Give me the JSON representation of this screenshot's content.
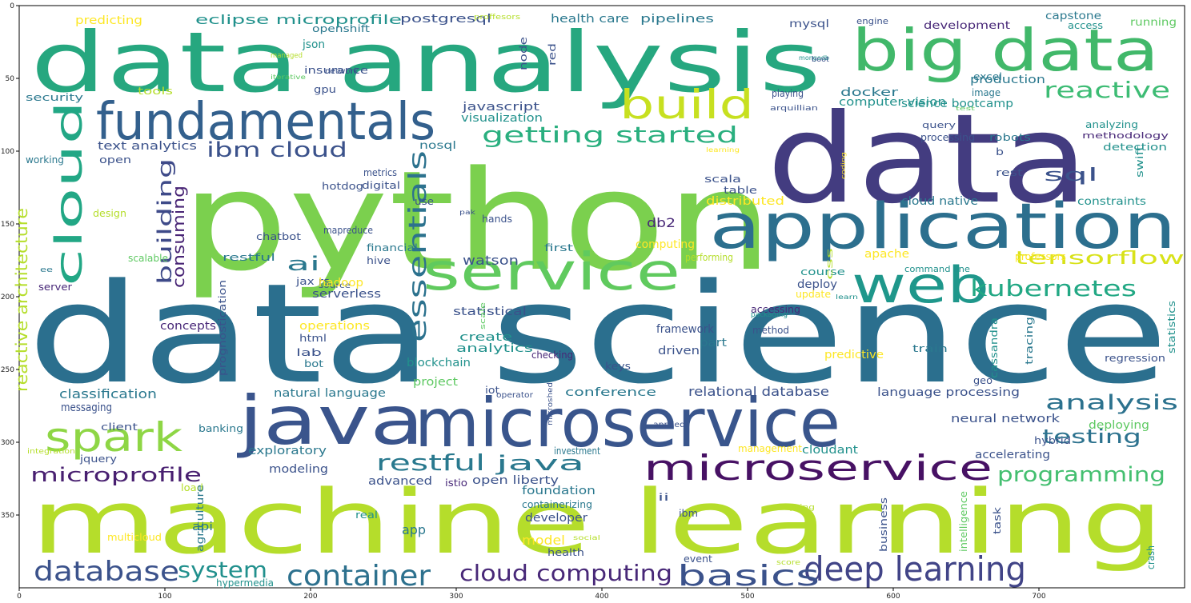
{
  "axes": {
    "xticks": [
      "0",
      "100",
      "200",
      "300",
      "400",
      "500",
      "600",
      "700"
    ],
    "yticks": [
      "0",
      "50",
      "100",
      "150",
      "200",
      "250",
      "300",
      "350"
    ]
  },
  "words": [
    {
      "text": "data science",
      "color": "#2b6f8e"
    },
    {
      "text": "python",
      "color": "#7bd04e"
    },
    {
      "text": "data",
      "color": "#433c80"
    },
    {
      "text": "data analysis",
      "color": "#26a77f"
    },
    {
      "text": "machine learning",
      "color": "#b5dd2b"
    },
    {
      "text": "big data",
      "color": "#41b86a"
    },
    {
      "text": "fundamentals",
      "color": "#33608d"
    },
    {
      "text": "application",
      "color": "#2c6f8e"
    },
    {
      "text": "java",
      "color": "#3a548c"
    },
    {
      "text": "microservice",
      "color": "#39558c"
    },
    {
      "text": "service",
      "color": "#60ca5e"
    },
    {
      "text": "web",
      "color": "#1f978b"
    },
    {
      "text": "build",
      "color": "#c7e020"
    },
    {
      "text": "cloud",
      "color": "#22a785"
    },
    {
      "text": "spark",
      "color": "#8ed645"
    },
    {
      "text": "microservice",
      "color": "#471164"
    },
    {
      "text": "deep learning",
      "color": "#414487"
    },
    {
      "text": "container",
      "color": "#2d718e"
    },
    {
      "text": "basics",
      "color": "#3b528b"
    },
    {
      "text": "database",
      "color": "#3b528b"
    },
    {
      "text": "cloud computing",
      "color": "#482878"
    },
    {
      "text": "system",
      "color": "#21908d"
    },
    {
      "text": "kubernetes",
      "color": "#22a884"
    },
    {
      "text": "getting started",
      "color": "#2aaf7f"
    },
    {
      "text": "reactive",
      "color": "#3dbc74"
    },
    {
      "text": "essentials",
      "color": "#2c728e"
    },
    {
      "text": "analysis",
      "color": "#2c728e"
    },
    {
      "text": "testing",
      "color": "#2c728e"
    },
    {
      "text": "programming",
      "color": "#44bf70"
    },
    {
      "text": "restful",
      "color": "#29798e"
    },
    {
      "text": "java",
      "color": "#2a788e"
    },
    {
      "text": "microprofile",
      "color": "#481f70"
    },
    {
      "text": "ibm cloud",
      "color": "#3b528b"
    },
    {
      "text": "ai",
      "color": "#2a788e"
    },
    {
      "text": "building",
      "color": "#3e4a89"
    },
    {
      "text": "consuming",
      "color": "#482475"
    },
    {
      "text": "sql",
      "color": "#3b528b"
    },
    {
      "text": "tensorflow",
      "color": "#d8e219"
    },
    {
      "text": "eclipse microprofile",
      "color": "#21918c"
    },
    {
      "text": "postgresql",
      "color": "#3b528b"
    },
    {
      "text": "health care",
      "color": "#2a788e"
    },
    {
      "text": "pipelines",
      "color": "#2a788e"
    },
    {
      "text": "mysql",
      "color": "#3b528b"
    },
    {
      "text": "development",
      "color": "#482878"
    },
    {
      "text": "capstone",
      "color": "#2a788e"
    },
    {
      "text": "running",
      "color": "#5ec962"
    },
    {
      "text": "engine",
      "color": "#3b528b"
    },
    {
      "text": "predicting",
      "color": "#fde725"
    },
    {
      "text": "proffesors",
      "color": "#b5de2b"
    },
    {
      "text": "openshift",
      "color": "#2a788e"
    },
    {
      "text": "json",
      "color": "#21918c"
    },
    {
      "text": "insurance",
      "color": "#3b528b"
    },
    {
      "text": "gpu",
      "color": "#3b528b"
    },
    {
      "text": "network",
      "color": "#3b528b"
    },
    {
      "text": "security",
      "color": "#2a788e"
    },
    {
      "text": "tools",
      "color": "#b5de2b"
    },
    {
      "text": "javascript",
      "color": "#3b528b"
    },
    {
      "text": "visualization",
      "color": "#21918c"
    },
    {
      "text": "docker",
      "color": "#2a788e"
    },
    {
      "text": "computer vision",
      "color": "#21918c"
    },
    {
      "text": "science bootcamp",
      "color": "#21918c"
    },
    {
      "text": "text analytics",
      "color": "#3b528b"
    },
    {
      "text": "nosql",
      "color": "#2a788e"
    },
    {
      "text": "analyzing",
      "color": "#21918c"
    },
    {
      "text": "methodology",
      "color": "#482878"
    },
    {
      "text": "detection",
      "color": "#21918c"
    },
    {
      "text": "robots",
      "color": "#2a788e"
    },
    {
      "text": "processing",
      "color": "#3b528b"
    },
    {
      "text": "query",
      "color": "#3b528b"
    },
    {
      "text": "swift",
      "color": "#21918c"
    },
    {
      "text": "working",
      "color": "#2a788e"
    },
    {
      "text": "open",
      "color": "#3b528b"
    },
    {
      "text": "metrics",
      "color": "#3b528b"
    },
    {
      "text": "hotdog",
      "color": "#3b528b"
    },
    {
      "text": "digital",
      "color": "#3b528b"
    },
    {
      "text": "table",
      "color": "#3b528b"
    },
    {
      "text": "scala",
      "color": "#3b528b"
    },
    {
      "text": "rest",
      "color": "#3b528b"
    },
    {
      "text": "distributed",
      "color": "#fde725"
    },
    {
      "text": "cloud native",
      "color": "#2a788e"
    },
    {
      "text": "constraints",
      "color": "#21918c"
    },
    {
      "text": "design",
      "color": "#b5de2b"
    },
    {
      "text": "use",
      "color": "#3b528b"
    },
    {
      "text": "hands",
      "color": "#3b528b"
    },
    {
      "text": "db2",
      "color": "#482878"
    },
    {
      "text": "chatbot",
      "color": "#3b528b"
    },
    {
      "text": "mapreduce",
      "color": "#3b528b"
    },
    {
      "text": "financial",
      "color": "#2a788e"
    },
    {
      "text": "first",
      "color": "#2a788e"
    },
    {
      "text": "computing",
      "color": "#fde725"
    },
    {
      "text": "apache",
      "color": "#fde725"
    },
    {
      "text": "watson",
      "color": "#3b528b"
    },
    {
      "text": "restful",
      "color": "#2a788e"
    },
    {
      "text": "hive",
      "color": "#3b528b"
    },
    {
      "text": "performing",
      "color": "#b5de2b"
    },
    {
      "text": "professors",
      "color": "#fde725"
    },
    {
      "text": "course",
      "color": "#21918c"
    },
    {
      "text": "command line",
      "color": "#21918c"
    },
    {
      "text": "deploy",
      "color": "#3b528b"
    },
    {
      "text": "scalable",
      "color": "#5ec962"
    },
    {
      "text": "server",
      "color": "#482878"
    },
    {
      "text": "source",
      "color": "#3b528b"
    },
    {
      "text": "jax rs",
      "color": "#3b528b"
    },
    {
      "text": "serverless",
      "color": "#3b528b"
    },
    {
      "text": "hadoop",
      "color": "#fde725"
    },
    {
      "text": "statistical",
      "color": "#3b528b"
    },
    {
      "text": "operations",
      "color": "#fde725"
    },
    {
      "text": "concepts",
      "color": "#482878"
    },
    {
      "text": "create",
      "color": "#21918c"
    },
    {
      "text": "framework",
      "color": "#3b528b"
    },
    {
      "text": "method",
      "color": "#3b528b"
    },
    {
      "text": "analytics",
      "color": "#21918c"
    },
    {
      "text": "part",
      "color": "#2a788e"
    },
    {
      "text": "lab",
      "color": "#3b528b"
    },
    {
      "text": "driven",
      "color": "#3b528b"
    },
    {
      "text": "predictive",
      "color": "#fde725"
    },
    {
      "text": "train",
      "color": "#2a788e"
    },
    {
      "text": "regression",
      "color": "#3b528b"
    },
    {
      "text": "blockchain",
      "color": "#21918c"
    },
    {
      "text": "checking",
      "color": "#482878"
    },
    {
      "text": "keys",
      "color": "#3b528b"
    },
    {
      "text": "project",
      "color": "#5ec962"
    },
    {
      "text": "classification",
      "color": "#2a788e"
    },
    {
      "text": "natural language",
      "color": "#2a788e"
    },
    {
      "text": "conference",
      "color": "#2a788e"
    },
    {
      "text": "relational database",
      "color": "#3b528b"
    },
    {
      "text": "language processing",
      "color": "#3b528b"
    },
    {
      "text": "messaging",
      "color": "#3b528b"
    },
    {
      "text": "client",
      "color": "#3b528b"
    },
    {
      "text": "neural network",
      "color": "#3b528b"
    },
    {
      "text": "deploying",
      "color": "#5ec962"
    },
    {
      "text": "hybrid",
      "color": "#3b528b"
    },
    {
      "text": "banking",
      "color": "#2a788e"
    },
    {
      "text": "exploratory",
      "color": "#2a788e"
    },
    {
      "text": "investment",
      "color": "#2a788e"
    },
    {
      "text": "management",
      "color": "#fde725"
    },
    {
      "text": "cloudant",
      "color": "#21918c"
    },
    {
      "text": "accelerating",
      "color": "#3b528b"
    },
    {
      "text": "jquery",
      "color": "#3b528b"
    },
    {
      "text": "modeling",
      "color": "#3b528b"
    },
    {
      "text": "advanced",
      "color": "#3b528b"
    },
    {
      "text": "open liberty",
      "color": "#3b528b"
    },
    {
      "text": "foundation",
      "color": "#2a788e"
    },
    {
      "text": "containerizing",
      "color": "#2a788e"
    },
    {
      "text": "developer",
      "color": "#3b528b"
    },
    {
      "text": "load",
      "color": "#b5de2b"
    },
    {
      "text": "api",
      "color": "#2a788e"
    },
    {
      "text": "real",
      "color": "#21918c"
    },
    {
      "text": "app",
      "color": "#2a788e"
    },
    {
      "text": "model",
      "color": "#fde725"
    },
    {
      "text": "health",
      "color": "#3b528b"
    },
    {
      "text": "multicloud",
      "color": "#fde725"
    },
    {
      "text": "event",
      "color": "#3b528b"
    },
    {
      "text": "hypermedia",
      "color": "#21918c"
    },
    {
      "text": "task",
      "color": "#3b528b"
    },
    {
      "text": "crash",
      "color": "#21918c"
    },
    {
      "text": "excel",
      "color": "#2a788e"
    },
    {
      "text": "production",
      "color": "#2a788e"
    },
    {
      "text": "image",
      "color": "#2a788e"
    },
    {
      "text": "playing",
      "color": "#3b528b"
    },
    {
      "text": "access",
      "color": "#21918c"
    },
    {
      "text": "reactive architecture",
      "color": "#b5de2b"
    },
    {
      "text": "prognostication",
      "color": "#3b528b"
    },
    {
      "text": "statistics",
      "color": "#21918c"
    },
    {
      "text": "tracing",
      "color": "#2a788e"
    },
    {
      "text": "cassandra",
      "color": "#21918c"
    },
    {
      "text": "geo",
      "color": "#3b528b"
    },
    {
      "text": "node",
      "color": "#3b528b"
    },
    {
      "text": "red",
      "color": "#3b528b"
    },
    {
      "text": "b",
      "color": "#3b528b"
    },
    {
      "text": "ii",
      "color": "#3b528b"
    },
    {
      "text": "ibm",
      "color": "#3b528b"
    },
    {
      "text": "istio",
      "color": "#482878"
    },
    {
      "text": "iot",
      "color": "#3b528b"
    },
    {
      "text": "css",
      "color": "#b5de2b"
    },
    {
      "text": "update",
      "color": "#fde725"
    },
    {
      "text": "accessing",
      "color": "#482878"
    },
    {
      "text": "html",
      "color": "#3b528b"
    },
    {
      "text": "bot",
      "color": "#2a788e"
    },
    {
      "text": "agriculture",
      "color": "#2a788e"
    },
    {
      "text": "business",
      "color": "#3b528b"
    },
    {
      "text": "intelligence",
      "color": "#5ec962"
    },
    {
      "text": "mongodb",
      "color": "#21918c"
    },
    {
      "text": "managed",
      "color": "#b5de2b"
    },
    {
      "text": "iterative",
      "color": "#5ec962"
    },
    {
      "text": "arquillian",
      "color": "#3b528b"
    },
    {
      "text": "boot",
      "color": "#3b528b"
    },
    {
      "text": "test",
      "color": "#5ec962"
    },
    {
      "text": "learning",
      "color": "#fde725"
    },
    {
      "text": "pak",
      "color": "#3b528b"
    },
    {
      "text": "coding",
      "color": "#fde725"
    },
    {
      "text": "ee",
      "color": "#2a788e"
    },
    {
      "text": "integration",
      "color": "#b5de2b"
    },
    {
      "text": "microshed",
      "color": "#3b528b"
    },
    {
      "text": "applied",
      "color": "#3b528b"
    },
    {
      "text": "operator",
      "color": "#3b528b"
    },
    {
      "text": "scale",
      "color": "#5ec962"
    },
    {
      "text": "packaging",
      "color": "#21918c"
    },
    {
      "text": "learn",
      "color": "#21918c"
    },
    {
      "text": "spring",
      "color": "#b5de2b"
    },
    {
      "text": "social",
      "color": "#b5de2b"
    },
    {
      "text": "score",
      "color": "#b5de2b"
    }
  ]
}
